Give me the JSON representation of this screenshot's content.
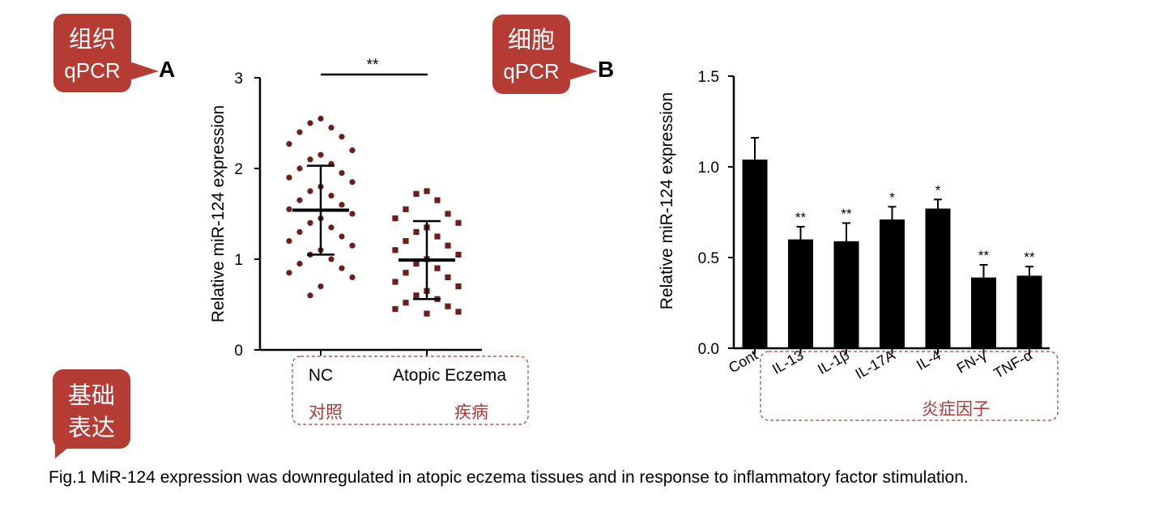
{
  "colors": {
    "callout": "#b53b35",
    "dot": "#6b1e1c",
    "bar": "#000000",
    "dashed_box": "#a0403a"
  },
  "callouts": [
    {
      "line1": "组织",
      "line2": "qPCR"
    },
    {
      "line1": "细胞",
      "line2": "qPCR"
    },
    {
      "line1": "基础",
      "line2": "表达"
    }
  ],
  "annotations": {
    "panel_a_label": "A",
    "panel_b_label": "B",
    "a_group_labels": [
      "对照",
      "疾病"
    ],
    "b_group_label": "炎症因子"
  },
  "chart_data": [
    {
      "type": "scatter",
      "panel": "A",
      "ylabel": "Relative miR-124 expression",
      "ylim": [
        0,
        3
      ],
      "yticks": [
        "0",
        "1",
        "2",
        "3"
      ],
      "categories": [
        "NC",
        "Atopic Eczema"
      ],
      "significance": "**",
      "series": [
        {
          "category": "NC",
          "mean": 1.54,
          "sd_upper": 2.03,
          "sd_lower": 1.05,
          "values": [
            2.55,
            2.5,
            2.45,
            2.4,
            2.35,
            2.27,
            2.2,
            2.15,
            2.1,
            2.05,
            2.0,
            1.95,
            1.9,
            1.85,
            1.8,
            1.75,
            1.7,
            1.65,
            1.6,
            1.55,
            1.5,
            1.45,
            1.4,
            1.35,
            1.3,
            1.25,
            1.2,
            1.15,
            1.1,
            1.05,
            1.0,
            0.95,
            0.9,
            0.85,
            0.8,
            0.7,
            0.6
          ]
        },
        {
          "category": "Atopic Eczema",
          "mean": 0.99,
          "sd_upper": 1.42,
          "sd_lower": 0.56,
          "values": [
            1.75,
            1.72,
            1.65,
            1.55,
            1.5,
            1.45,
            1.4,
            1.35,
            1.3,
            1.25,
            1.2,
            1.15,
            1.1,
            1.05,
            1.0,
            0.95,
            0.9,
            0.85,
            0.8,
            0.75,
            0.7,
            0.65,
            0.6,
            0.56,
            0.52,
            0.48,
            0.45,
            0.42,
            0.4
          ]
        }
      ]
    },
    {
      "type": "bar",
      "panel": "B",
      "ylabel": "Relative miR-124 expression",
      "ylim": [
        0,
        1.5
      ],
      "yticks": [
        "0.0",
        "0.5",
        "1.0",
        "1.5"
      ],
      "categories": [
        "Cont",
        "IL-13",
        "IL-1β",
        "IL-17A",
        "IL-4",
        "FN-γ",
        "TNF-α"
      ],
      "values": [
        1.04,
        0.6,
        0.59,
        0.71,
        0.77,
        0.39,
        0.4
      ],
      "errors": [
        0.12,
        0.07,
        0.1,
        0.07,
        0.05,
        0.07,
        0.05
      ],
      "significance": [
        "",
        "**",
        "**",
        "*",
        "*",
        "**",
        "**"
      ]
    }
  ],
  "caption": "Fig.1 MiR-124 expression was downregulated in atopic eczema tissues and in response to inflammatory factor stimulation."
}
